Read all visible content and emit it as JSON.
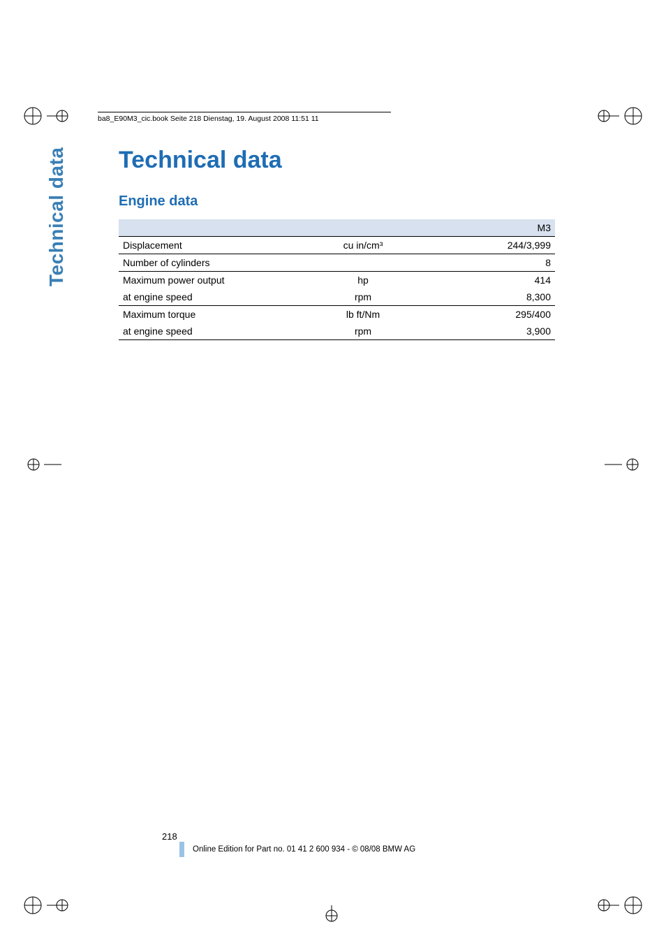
{
  "colors": {
    "heading": "#1e6db4",
    "sidetab": "#3a7fb5",
    "header_band": "#d7e1ef",
    "rule": "#000000",
    "accent_bar": "#9bc3e4",
    "text": "#000000",
    "background": "#ffffff"
  },
  "running_head": "ba8_E90M3_cic.book  Seite 218  Dienstag, 19. August 2008  11:51 11",
  "side_tab": "Technical data",
  "title": "Technical data",
  "section": "Engine data",
  "table": {
    "column_header": "M3",
    "columns": [
      "label",
      "unit",
      "value"
    ],
    "col_widths_pct": [
      44,
      24,
      32
    ],
    "header_bg": "#d7e1ef",
    "border_color": "#000000",
    "font_size_pt": 10,
    "rows": [
      {
        "label": "Displacement",
        "unit": "cu in/cm³",
        "value": "244/3,999",
        "rule_after": true
      },
      {
        "label": "Number of cylinders",
        "unit": "",
        "value": "8",
        "rule_after": true
      },
      {
        "label": "Maximum power output",
        "unit": "hp",
        "value": "414",
        "rule_after": false
      },
      {
        "label": "at engine speed",
        "unit": "rpm",
        "value": "8,300",
        "rule_after": true
      },
      {
        "label": "Maximum torque",
        "unit": "lb ft/Nm",
        "value": "295/400",
        "rule_after": false
      },
      {
        "label": "at engine speed",
        "unit": "rpm",
        "value": "3,900",
        "rule_after": true
      }
    ]
  },
  "page_number": "218",
  "footer": "Online Edition for Part no. 01 41 2 600 934 - © 08/08 BMW AG"
}
